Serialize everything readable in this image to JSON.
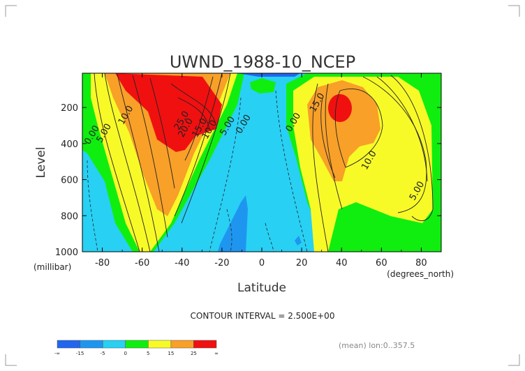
{
  "chart_data": {
    "type": "contour",
    "title": "UWND_1988-10_NCEP",
    "xlabel": "Latitude",
    "ylabel": "Level",
    "x_unit": "(degrees_north)",
    "y_unit": "(millibar)",
    "xlim": [
      -90,
      90
    ],
    "ylim": [
      1000,
      10
    ],
    "y_inverted": true,
    "x_ticks": [
      "-80",
      "-60",
      "-40",
      "-20",
      "0",
      "20",
      "40",
      "60",
      "80"
    ],
    "x_tick_values": [
      -80,
      -60,
      -40,
      -20,
      0,
      20,
      40,
      60,
      80
    ],
    "y_ticks": [
      "200",
      "400",
      "600",
      "800",
      "1000"
    ],
    "y_tick_values": [
      200,
      400,
      600,
      800,
      1000
    ],
    "contour_interval_text": "CONTOUR INTERVAL = 2.500E+00",
    "contour_interval": 2.5,
    "footnote": "(mean) lon:0..357.5",
    "contour_labels": [
      {
        "text": "0.00",
        "lat": -84,
        "level": 360
      },
      {
        "text": "5.00",
        "lat": -78,
        "level": 350
      },
      {
        "text": "10.0",
        "lat": -67,
        "level": 250
      },
      {
        "text": "25.0",
        "lat": -39,
        "level": 280
      },
      {
        "text": "20.0",
        "lat": -37,
        "level": 320
      },
      {
        "text": "15.0",
        "lat": -30,
        "level": 320
      },
      {
        "text": "10.0",
        "lat": -25,
        "level": 330
      },
      {
        "text": "5.00",
        "lat": -16,
        "level": 310
      },
      {
        "text": "0.00",
        "lat": -8,
        "level": 300
      },
      {
        "text": "0.00",
        "lat": 17,
        "level": 290
      },
      {
        "text": "15.0",
        "lat": 29,
        "level": 180
      },
      {
        "text": "10.0",
        "lat": 55,
        "level": 500
      },
      {
        "text": "5.00",
        "lat": 79,
        "level": 670
      }
    ],
    "colorbar": {
      "colors": [
        "#2266ee",
        "#1e96f0",
        "#28d0f4",
        "#10ee10",
        "#f8fa28",
        "#f8a028",
        "#f01010"
      ],
      "tick_labels": [
        "-∞",
        "-15",
        "-5",
        "0",
        "5",
        "15",
        "25",
        "∞"
      ]
    }
  }
}
